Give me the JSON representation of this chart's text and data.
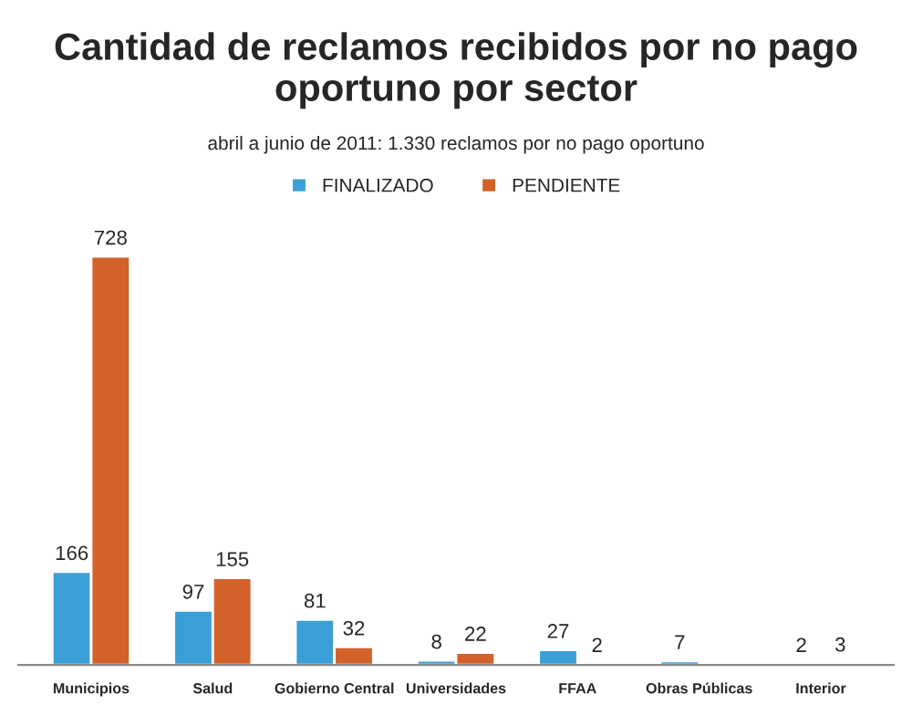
{
  "chart_data": {
    "type": "bar",
    "title": "Cantidad de reclamos recibidos por no pago oportuno por sector",
    "subtitle": "abril a junio de 2011: 1.330 reclamos por no pago oportuno",
    "categories": [
      "Municipios",
      "Salud",
      "Gobierno Central",
      "Universidades",
      "FFAA",
      "Obras Públicas",
      "Interior"
    ],
    "series": [
      {
        "name": "FINALIZADO",
        "color": "#3a9fd6",
        "values": [
          166,
          97,
          81,
          8,
          27,
          7,
          2
        ]
      },
      {
        "name": "PENDIENTE",
        "color": "#d2622a",
        "values": [
          728,
          155,
          32,
          22,
          2,
          null,
          3
        ]
      }
    ],
    "data_labels": true,
    "legend": "top",
    "grid": false
  }
}
